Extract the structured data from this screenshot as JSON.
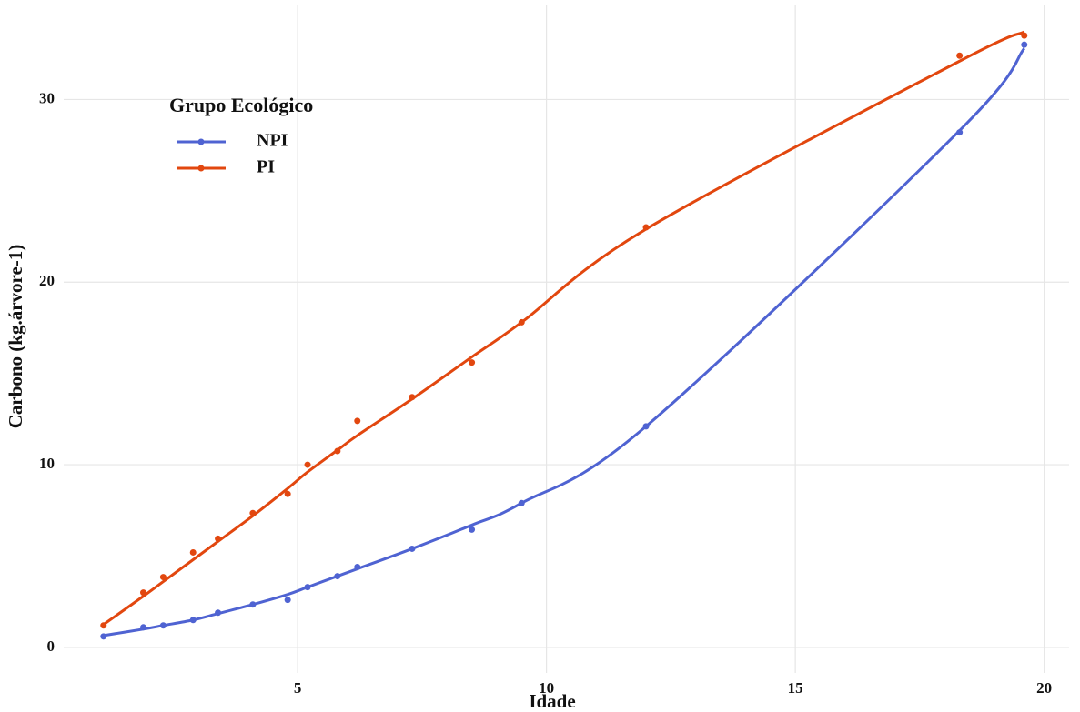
{
  "chart_data": {
    "type": "scatter-smooth",
    "x_label": "Idade",
    "y_label": "Carbono (kg.árvore-1)",
    "legend_title": "Grupo Ecológico",
    "legend_position": "top-left",
    "x": [
      1.1,
      1.9,
      2.3,
      2.9,
      3.4,
      4.1,
      4.8,
      5.2,
      5.8,
      6.2,
      7.3,
      8.5,
      9.5,
      12.0,
      18.3,
      19.6
    ],
    "series": [
      {
        "name": "NPI",
        "color": "#4f63d2",
        "values": [
          0.6,
          1.1,
          1.2,
          1.5,
          1.9,
          2.35,
          2.6,
          3.3,
          3.9,
          4.4,
          5.4,
          6.45,
          7.9,
          12.1,
          28.2,
          33.0
        ],
        "fit_values": [
          0.65,
          1.0,
          1.2,
          1.5,
          1.85,
          2.35,
          2.9,
          3.3,
          3.9,
          4.3,
          5.4,
          6.7,
          7.9,
          12.1,
          28.3,
          32.8
        ]
      },
      {
        "name": "PI",
        "color": "#e2470f",
        "values": [
          1.2,
          3.0,
          3.85,
          5.2,
          5.95,
          7.35,
          8.4,
          10.0,
          10.75,
          12.4,
          13.7,
          15.6,
          17.8,
          23.0,
          32.4,
          33.5
        ],
        "fit_values": [
          1.25,
          2.8,
          3.6,
          4.8,
          5.8,
          7.2,
          8.7,
          9.6,
          10.8,
          11.6,
          13.6,
          15.9,
          17.8,
          22.9,
          32.1,
          33.7
        ]
      }
    ],
    "xlim": [
      0.3,
      20.5
    ],
    "ylim": [
      -1.4,
      35.2
    ],
    "xticks": [
      5,
      10,
      15,
      20
    ],
    "yticks": [
      0,
      10,
      20,
      30
    ],
    "grid": true
  }
}
